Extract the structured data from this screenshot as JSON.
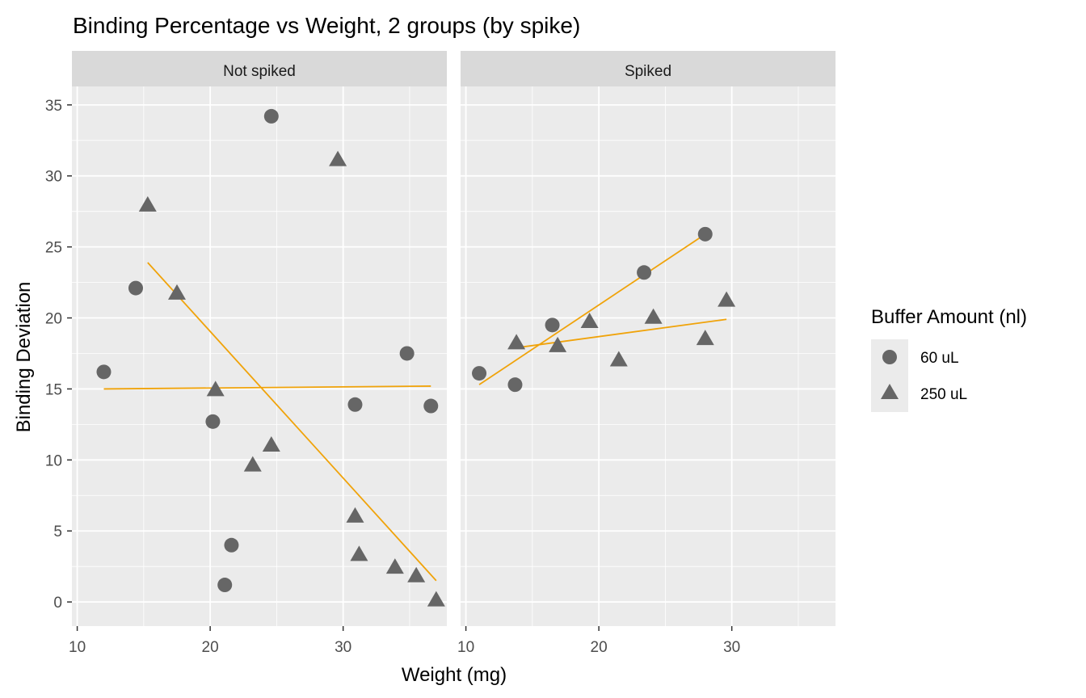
{
  "chart_data": {
    "type": "scatter",
    "title": "Binding Percentage vs Weight, 2 groups (by spike)",
    "xlabel": "Weight (mg)",
    "ylabel": "Binding Deviation",
    "xlim": [
      9.6,
      37.8
    ],
    "ylim": [
      -1.7,
      36.3
    ],
    "x_ticks": [
      10,
      20,
      30
    ],
    "y_ticks": [
      0,
      5,
      10,
      15,
      20,
      25,
      30,
      35
    ],
    "grid": true,
    "legend": {
      "title": "Buffer Amount (nl)",
      "position": "right",
      "entries": [
        {
          "label": "60 uL",
          "shape": "circle"
        },
        {
          "label": "250 uL",
          "shape": "triangle"
        }
      ]
    },
    "colors": {
      "points": "#666666",
      "fit_line": "#f0a30a",
      "panel_bg": "#ebebeb",
      "strip_bg": "#d9d9d9",
      "grid": "#ffffff"
    },
    "facets": [
      {
        "label": "Not spiked",
        "series": [
          {
            "name": "60 uL",
            "shape": "circle",
            "points": [
              [
                12.0,
                16.2
              ],
              [
                14.4,
                22.1
              ],
              [
                20.2,
                12.7
              ],
              [
                21.1,
                1.2
              ],
              [
                21.6,
                4.0
              ],
              [
                24.6,
                34.2
              ],
              [
                30.9,
                13.9
              ],
              [
                34.8,
                17.5
              ],
              [
                36.6,
                13.8
              ]
            ]
          },
          {
            "name": "250 uL",
            "shape": "triangle",
            "points": [
              [
                15.3,
                27.9
              ],
              [
                17.5,
                21.7
              ],
              [
                20.4,
                14.9
              ],
              [
                23.2,
                9.6
              ],
              [
                24.6,
                11.0
              ],
              [
                29.6,
                31.1
              ],
              [
                30.9,
                6.0
              ],
              [
                31.2,
                3.3
              ],
              [
                33.9,
                2.4
              ],
              [
                35.5,
                1.8
              ],
              [
                37.0,
                0.1
              ]
            ]
          }
        ],
        "fits": [
          {
            "name": "60 uL",
            "from": [
              12.0,
              15.0
            ],
            "to": [
              36.6,
              15.2
            ]
          },
          {
            "name": "250 uL",
            "from": [
              15.3,
              23.9
            ],
            "to": [
              37.0,
              1.5
            ]
          }
        ]
      },
      {
        "label": "Spiked",
        "series": [
          {
            "name": "60 uL",
            "shape": "circle",
            "points": [
              [
                11.0,
                16.1
              ],
              [
                13.7,
                15.3
              ],
              [
                16.5,
                19.5
              ],
              [
                23.4,
                23.2
              ],
              [
                28.0,
                25.9
              ]
            ]
          },
          {
            "name": "250 uL",
            "shape": "triangle",
            "points": [
              [
                13.8,
                18.2
              ],
              [
                16.9,
                18.0
              ],
              [
                19.3,
                19.7
              ],
              [
                21.5,
                17.0
              ],
              [
                24.1,
                20.0
              ],
              [
                28.0,
                18.5
              ],
              [
                29.6,
                21.2
              ]
            ]
          }
        ],
        "fits": [
          {
            "name": "60 uL",
            "from": [
              11.0,
              15.3
            ],
            "to": [
              28.0,
              25.9
            ]
          },
          {
            "name": "250 uL",
            "from": [
              13.8,
              17.9
            ],
            "to": [
              29.6,
              19.9
            ]
          }
        ]
      }
    ]
  }
}
